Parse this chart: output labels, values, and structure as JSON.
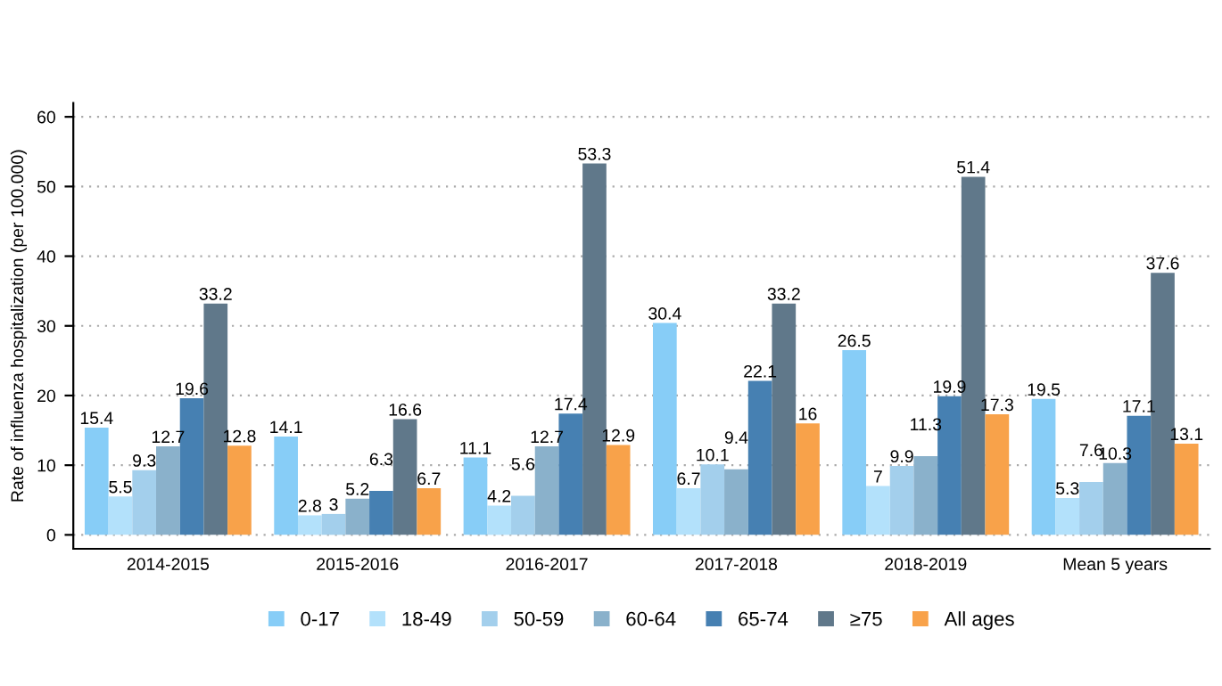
{
  "chart_data": {
    "type": "bar",
    "ylabel": "Rate of influenza hospitalization (per 100.000)",
    "categories": [
      "2014-2015",
      "2015-2016",
      "2016-2017",
      "2017-2018",
      "2018-2019",
      "Mean 5 years"
    ],
    "series": [
      {
        "name": "0-17",
        "color": "#87cdf7",
        "values": [
          15.4,
          14.1,
          11.1,
          30.4,
          26.5,
          19.5
        ]
      },
      {
        "name": "18-49",
        "color": "#b3e1fb",
        "values": [
          5.5,
          2.8,
          4.2,
          6.7,
          7,
          5.3
        ]
      },
      {
        "name": "50-59",
        "color": "#a3cfec",
        "values": [
          9.3,
          3,
          5.6,
          10.1,
          9.9,
          7.6
        ]
      },
      {
        "name": "60-64",
        "color": "#8ab1cb",
        "values": [
          12.7,
          5.2,
          12.7,
          9.4,
          11.3,
          10.3
        ]
      },
      {
        "name": "65-74",
        "color": "#4680b2",
        "values": [
          19.6,
          6.3,
          17.4,
          22.1,
          19.9,
          17.1
        ]
      },
      {
        "name": "≥75",
        "color": "#60788a",
        "values": [
          33.2,
          16.6,
          53.3,
          33.2,
          51.4,
          37.6
        ]
      },
      {
        "name": "All ages",
        "color": "#f8a24a",
        "values": [
          12.8,
          6.7,
          12.9,
          16,
          17.3,
          13.1
        ]
      }
    ],
    "ylim": [
      -2,
      62
    ],
    "yticks": [
      0,
      10,
      20,
      30,
      40,
      50,
      60
    ],
    "grid": "y",
    "legend": "bottom",
    "data_labels": true
  }
}
